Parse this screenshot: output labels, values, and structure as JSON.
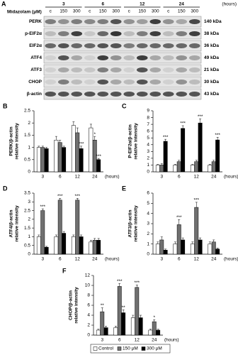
{
  "blot": {
    "label": "A",
    "header": "Midazolam (μM)",
    "times": [
      "3",
      "6",
      "12",
      "24"
    ],
    "time_unit": "(hours)",
    "doses": [
      "c",
      "150",
      "300"
    ],
    "rows": [
      {
        "name": "PERK",
        "size": "140 kDa"
      },
      {
        "name": "p-EIF2α",
        "size": "38 kDa"
      },
      {
        "name": "EIF2α",
        "size": "36 kDa"
      },
      {
        "name": "ATF4",
        "size": "49 kDa"
      },
      {
        "name": "ATF3",
        "size": "21 kDa"
      },
      {
        "name": "CHOP",
        "size": "30 kDa"
      },
      {
        "name": "β-actin",
        "size": "43 kDa"
      }
    ]
  },
  "chart_data": [
    {
      "label": "B",
      "type": "bar",
      "ylabel": [
        "PERK/β-actin",
        "relative intensity"
      ],
      "xlabel": "(hours)",
      "categories": [
        "3",
        "6",
        "12",
        "24"
      ],
      "ylim": [
        0,
        2.5
      ],
      "yticks": [
        0,
        0.5,
        1,
        1.5,
        2,
        2.5
      ],
      "series": [
        {
          "color": "#ffffff",
          "values": [
            1,
            1.3,
            1.9,
            1.8
          ],
          "errors": [
            0.05,
            0.15,
            0.15,
            0.15
          ],
          "annotations": [
            null,
            null,
            null,
            null
          ]
        },
        {
          "color": "#707070",
          "values": [
            1,
            1.2,
            1.6,
            1.3
          ],
          "errors": [
            0.05,
            0.1,
            0.2,
            0.15
          ],
          "annotations": [
            null,
            null,
            null,
            "*"
          ]
        },
        {
          "color": "#000000",
          "values": [
            0.95,
            1,
            0.95,
            0.5
          ],
          "errors": [
            0.05,
            0.05,
            0.1,
            0.05
          ],
          "annotations": [
            null,
            null,
            "***",
            "***"
          ]
        }
      ]
    },
    {
      "label": "C",
      "type": "bar",
      "ylabel": [
        "P-EIF2α/β-actin",
        "relative intensity"
      ],
      "xlabel": "(hours)",
      "categories": [
        "3",
        "6",
        "12",
        "24"
      ],
      "ylim": [
        0,
        9
      ],
      "yticks": [
        0,
        1,
        2,
        3,
        4,
        5,
        6,
        7,
        8,
        9
      ],
      "series": [
        {
          "color": "#ffffff",
          "values": [
            1,
            1,
            1,
            1
          ],
          "errors": [
            0.1,
            0.1,
            0.1,
            0.1
          ],
          "annotations": [
            null,
            null,
            null,
            null
          ]
        },
        {
          "color": "#707070",
          "values": [
            1,
            1.5,
            1.5,
            1.5
          ],
          "errors": [
            0.2,
            0.2,
            0.2,
            0.2
          ],
          "annotations": [
            null,
            null,
            null,
            null
          ]
        },
        {
          "color": "#000000",
          "values": [
            4.5,
            6.4,
            7.2,
            4.7
          ],
          "errors": [
            0.3,
            0.4,
            0.6,
            0.4
          ],
          "annotations": [
            "***",
            "***",
            "***",
            "***"
          ]
        }
      ]
    },
    {
      "label": "D",
      "type": "bar",
      "ylabel": [
        "ATF4/β-actin",
        "relative intensity"
      ],
      "xlabel": "(hours)",
      "categories": [
        "3",
        "6",
        "12",
        "24"
      ],
      "ylim": [
        0,
        3.5
      ],
      "yticks": [
        0,
        0.5,
        1,
        1.5,
        2,
        2.5,
        3,
        3.5
      ],
      "series": [
        {
          "color": "#ffffff",
          "values": [
            1,
            1,
            1,
            0.7
          ],
          "errors": [
            0.1,
            0.1,
            0.1,
            0.1
          ],
          "annotations": [
            null,
            null,
            null,
            null
          ]
        },
        {
          "color": "#707070",
          "values": [
            2.5,
            3.1,
            3.1,
            0.8
          ],
          "errors": [
            0.1,
            0.1,
            0.1,
            0.1
          ],
          "annotations": [
            "***",
            "***",
            "***",
            null
          ]
        },
        {
          "color": "#000000",
          "values": [
            0.4,
            1.2,
            1,
            0.8
          ],
          "errors": [
            0.05,
            0.1,
            0.1,
            0.1
          ],
          "annotations": [
            null,
            null,
            null,
            null
          ]
        }
      ]
    },
    {
      "label": "E",
      "type": "bar",
      "ylabel": [
        "ATF3/β-actin",
        "relative intensity"
      ],
      "xlabel": "(hours)",
      "categories": [
        "3",
        "6",
        "12",
        "24"
      ],
      "ylim": [
        0,
        6
      ],
      "yticks": [
        0,
        1,
        2,
        3,
        4,
        5,
        6
      ],
      "series": [
        {
          "color": "#ffffff",
          "values": [
            1,
            1,
            1,
            1
          ],
          "errors": [
            0.2,
            0.2,
            0.2,
            0.2
          ],
          "annotations": [
            null,
            null,
            null,
            null
          ]
        },
        {
          "color": "#707070",
          "values": [
            1.4,
            2.9,
            4.6,
            1.2
          ],
          "errors": [
            0.3,
            0.5,
            0.5,
            0.2
          ],
          "annotations": [
            null,
            "***",
            "***",
            null
          ]
        },
        {
          "color": "#000000",
          "values": [
            0.4,
            1.4,
            1.4,
            0.5
          ],
          "errors": [
            0.1,
            0.2,
            0.2,
            0.1
          ],
          "annotations": [
            null,
            null,
            null,
            null
          ]
        }
      ]
    },
    {
      "label": "F",
      "type": "bar",
      "ylabel": [
        "CHOP/β-actin",
        "relative intensity"
      ],
      "xlabel": "(hours)",
      "categories": [
        "3",
        "6",
        "12",
        "24"
      ],
      "ylim": [
        0,
        12
      ],
      "yticks": [
        0,
        2,
        4,
        6,
        8,
        10,
        12
      ],
      "series": [
        {
          "name": "Control",
          "color": "#ffffff",
          "values": [
            1,
            1.5,
            3.5,
            1
          ],
          "errors": [
            0.2,
            0.3,
            0.5,
            0.2
          ],
          "annotations": [
            null,
            null,
            null,
            null
          ]
        },
        {
          "name": "150 μM",
          "color": "#707070",
          "values": [
            4.7,
            9.8,
            9.6,
            2.7
          ],
          "errors": [
            0.8,
            0.6,
            0.5,
            0.4
          ],
          "annotations": [
            "**",
            "***",
            "***",
            "*"
          ]
        },
        {
          "name": "300 μM",
          "color": "#000000",
          "values": [
            1.5,
            4.5,
            3.5,
            1
          ],
          "errors": [
            0.3,
            0.6,
            0.5,
            0.2
          ],
          "annotations": [
            null,
            "**",
            null,
            null
          ]
        }
      ]
    }
  ]
}
